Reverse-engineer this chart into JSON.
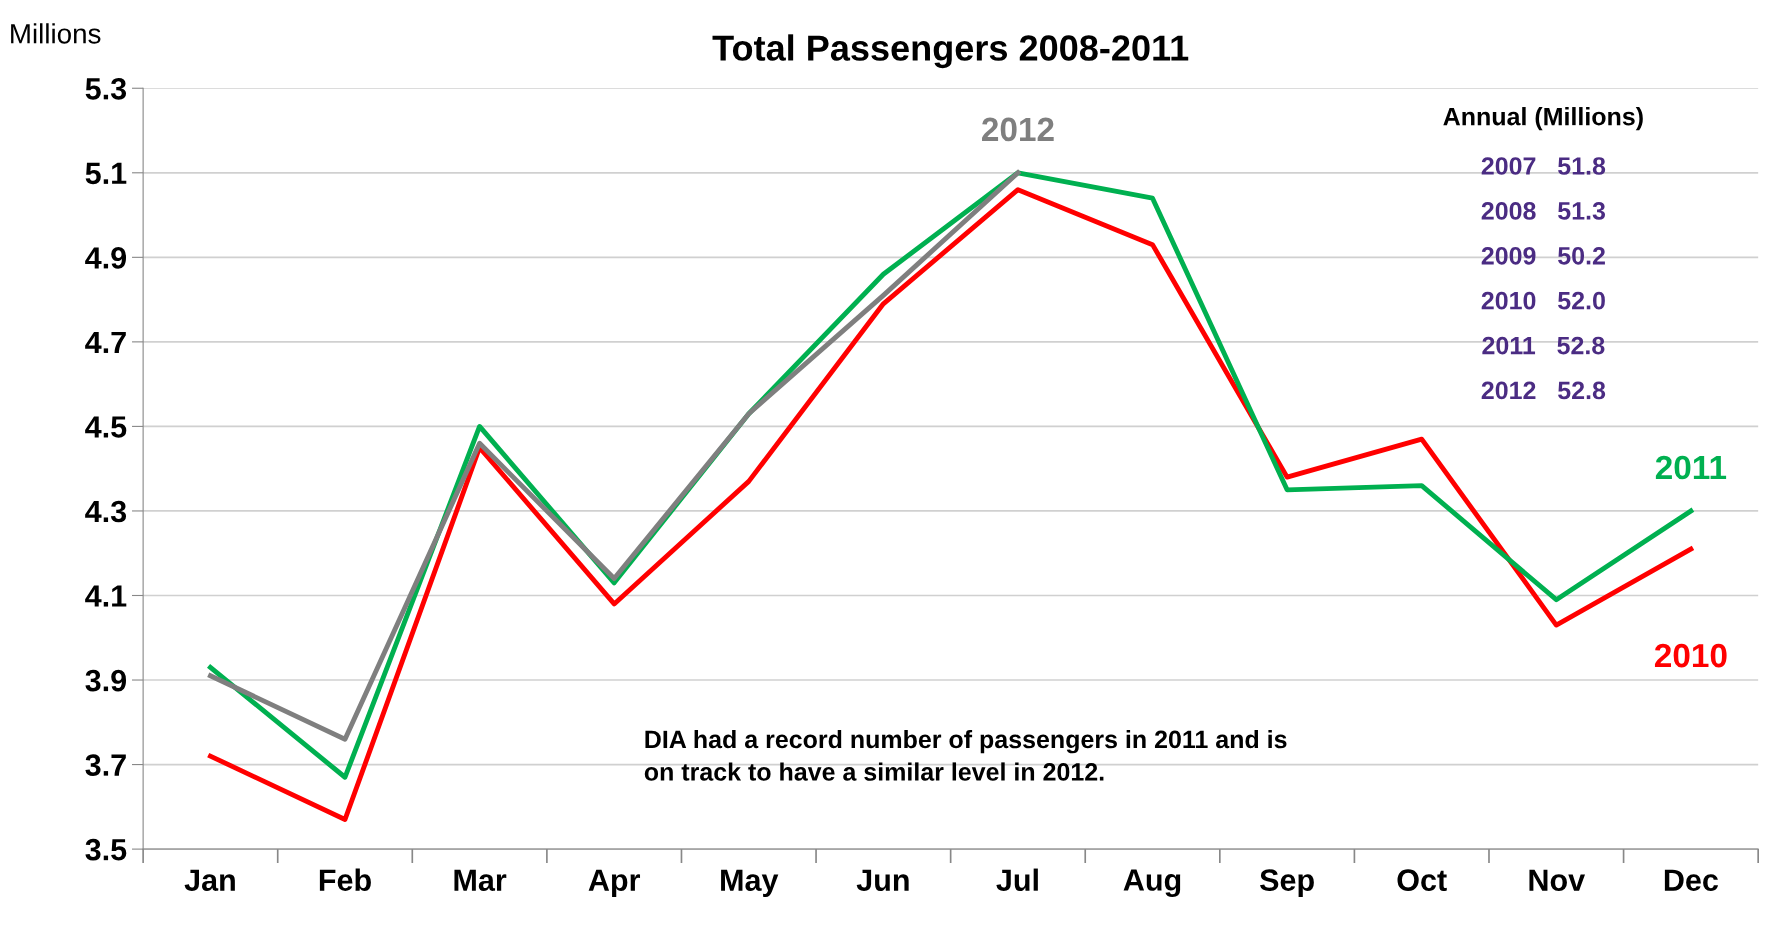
{
  "chart_data": {
    "type": "line",
    "title": "Total Passengers 2008-2011",
    "ylabel": "Millions",
    "categories": [
      "Jan",
      "Feb",
      "Mar",
      "Apr",
      "May",
      "Jun",
      "Jul",
      "Aug",
      "Sep",
      "Oct",
      "Nov",
      "Dec"
    ],
    "series": [
      {
        "name": "2010",
        "color": "#ff0000",
        "values": [
          3.72,
          3.57,
          4.45,
          4.08,
          4.37,
          4.79,
          5.06,
          4.93,
          4.38,
          4.47,
          4.03,
          4.21
        ]
      },
      {
        "name": "2011",
        "color": "#00b050",
        "values": [
          3.93,
          3.67,
          4.5,
          4.13,
          4.53,
          4.86,
          5.1,
          5.04,
          4.35,
          4.36,
          4.09,
          4.3
        ]
      },
      {
        "name": "2012",
        "color": "#7f7f7f",
        "values": [
          3.91,
          3.76,
          4.46,
          4.14,
          4.53,
          4.81,
          5.1,
          null,
          null,
          null,
          null,
          null
        ]
      }
    ],
    "ylim": [
      3.5,
      5.3
    ],
    "yticks": [
      3.5,
      3.7,
      3.9,
      4.1,
      4.3,
      4.5,
      4.7,
      4.9,
      5.1,
      5.3
    ],
    "grid": "y",
    "legend": false,
    "marker": "none",
    "line_style": "solid",
    "annotations": [
      "Annual (Millions)",
      "2007   51.8",
      "2008   51.3",
      "2009   50.2",
      "2010   52.0",
      "2011   52.8",
      "2012   52.8",
      "DIA had a record number of passengers in 2011 and is\non track to have a similar level in 2012."
    ]
  }
}
